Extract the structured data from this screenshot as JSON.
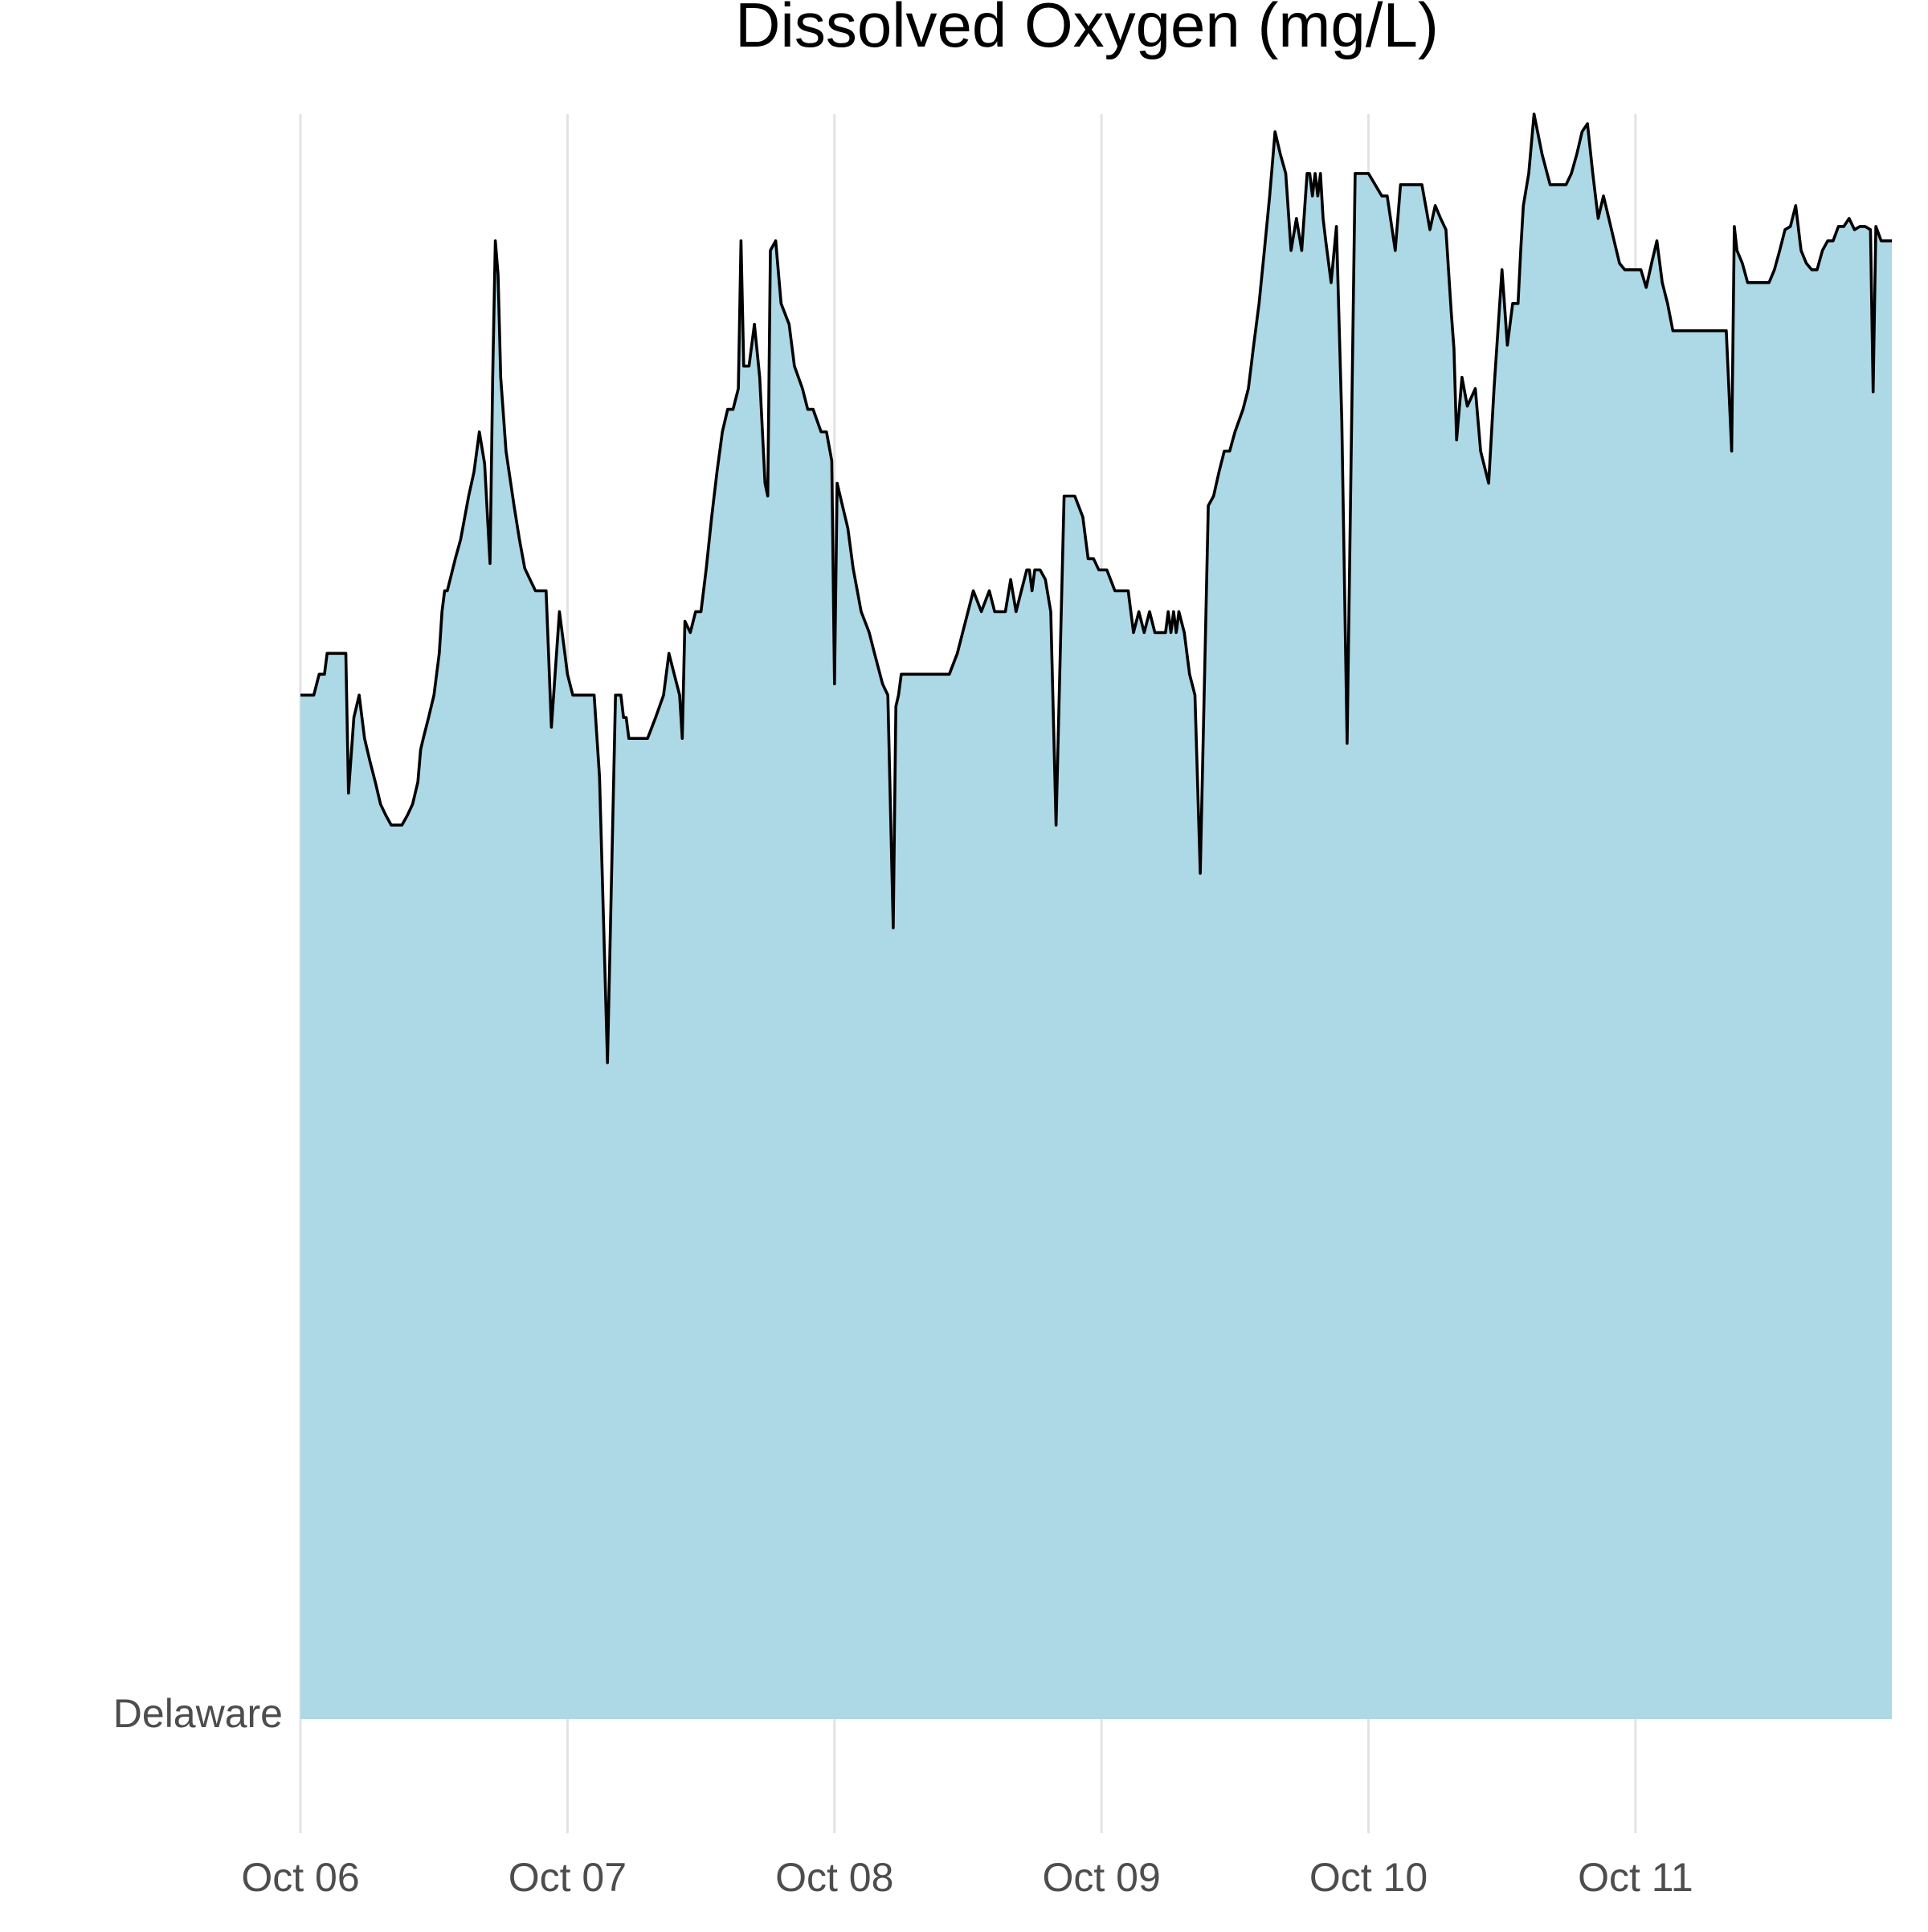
{
  "chart_data": {
    "type": "area",
    "title": "Dissolved Oxygen (mg/L)",
    "xlabel": "",
    "ylabel": "",
    "y_category_label": "Delaware",
    "x_tick_labels": [
      "Oct 06",
      "Oct 07",
      "Oct 08",
      "Oct 09",
      "Oct 10",
      "Oct 11"
    ],
    "x_tick_days": [
      0,
      1,
      2,
      3,
      4,
      5
    ],
    "x_unit": "days since Oct 06 00:00",
    "xlim": [
      0,
      5.96
    ],
    "ylim": [
      0,
      100
    ],
    "y_axis_note": "y values are relative (0 = baseline at Delaware row, 100 = top of plot); original prints no numeric y ticks",
    "grid": "vertical-major",
    "colors": {
      "fill": "#add8e6",
      "line": "#000000",
      "grid": "#e3e3e3"
    },
    "series": [
      {
        "x": [
          0.0,
          0.05,
          0.07,
          0.09,
          0.1,
          0.17,
          0.18,
          0.2,
          0.22,
          0.24,
          0.26,
          0.28,
          0.3,
          0.32,
          0.34,
          0.35,
          0.38,
          0.4,
          0.42,
          0.43,
          0.44,
          0.45,
          0.46,
          0.48,
          0.5,
          0.52,
          0.53,
          0.54,
          0.55,
          0.58,
          0.6,
          0.63,
          0.65,
          0.67,
          0.69,
          0.71,
          0.72,
          0.73,
          0.74,
          0.75,
          0.77,
          0.8,
          0.82,
          0.84,
          0.86,
          0.88,
          0.9,
          0.92,
          0.94,
          0.97,
          0.99,
          1.0,
          1.02,
          1.05,
          1.07,
          1.1,
          1.12,
          1.15,
          1.18,
          1.2,
          1.21,
          1.22,
          1.23,
          1.25,
          1.27,
          1.3,
          1.33,
          1.36,
          1.38,
          1.4,
          1.42,
          1.43,
          1.44,
          1.46,
          1.48,
          1.5,
          1.52,
          1.54,
          1.56,
          1.58,
          1.6,
          1.62,
          1.64,
          1.65,
          1.66,
          1.68,
          1.7,
          1.72,
          1.74,
          1.75,
          1.76,
          1.78,
          1.8,
          1.83,
          1.85,
          1.88,
          1.9,
          1.92,
          1.95,
          1.97,
          1.99,
          2.0,
          2.01,
          2.03,
          2.05,
          2.07,
          2.1,
          2.13,
          2.15,
          2.18,
          2.2,
          2.22,
          2.23,
          2.24,
          2.25,
          2.28,
          2.3,
          2.35,
          2.4,
          2.43,
          2.46,
          2.48,
          2.5,
          2.52,
          2.55,
          2.58,
          2.6,
          2.62,
          2.64,
          2.66,
          2.68,
          2.7,
          2.72,
          2.73,
          2.74,
          2.75,
          2.77,
          2.79,
          2.81,
          2.83,
          2.86,
          2.9,
          2.93,
          2.95,
          2.97,
          2.99,
          3.0,
          3.02,
          3.05,
          3.08,
          3.1,
          3.12,
          3.14,
          3.16,
          3.18,
          3.2,
          3.22,
          3.24,
          3.25,
          3.26,
          3.27,
          3.28,
          3.29,
          3.31,
          3.33,
          3.35,
          3.37,
          3.4,
          3.42,
          3.44,
          3.46,
          3.48,
          3.5,
          3.53,
          3.55,
          3.57,
          3.59,
          3.61,
          3.63,
          3.65,
          3.67,
          3.69,
          3.71,
          3.73,
          3.75,
          3.77,
          3.78,
          3.79,
          3.8,
          3.81,
          3.82,
          3.83,
          3.84,
          3.86,
          3.88,
          3.9,
          3.92,
          3.95,
          4.0,
          4.05,
          4.07,
          4.1,
          4.12,
          4.14,
          4.17,
          4.2,
          4.23,
          4.25,
          4.27,
          4.29,
          4.31,
          4.32,
          4.33,
          4.35,
          4.37,
          4.4,
          4.42,
          4.45,
          4.47,
          4.5,
          4.52,
          4.54,
          4.55,
          4.56,
          4.57,
          4.58,
          4.6,
          4.62,
          4.65,
          4.68,
          4.7,
          4.72,
          4.74,
          4.76,
          4.78,
          4.8,
          4.82,
          4.84,
          4.86,
          4.88,
          4.9,
          4.92,
          4.94,
          4.96,
          4.98,
          5.0,
          5.02,
          5.04,
          5.06,
          5.08,
          5.1,
          5.12,
          5.14,
          5.16,
          5.18,
          5.2,
          5.24,
          5.28,
          5.3,
          5.32,
          5.34,
          5.36,
          5.37,
          5.38,
          5.4,
          5.42,
          5.44,
          5.46,
          5.48,
          5.5,
          5.52,
          5.54,
          5.56,
          5.58,
          5.6,
          5.62,
          5.64,
          5.66,
          5.68,
          5.7,
          5.72,
          5.74,
          5.76,
          5.78,
          5.8,
          5.82,
          5.84,
          5.86,
          5.88,
          5.89,
          5.9,
          5.92,
          5.96
        ],
        "values": [
          63.8,
          63.8,
          65.1,
          65.1,
          66.4,
          66.4,
          57.7,
          62.4,
          63.8,
          61.1,
          59.7,
          58.4,
          57.0,
          56.3,
          55.7,
          55.7,
          55.7,
          56.3,
          57.0,
          57.7,
          58.4,
          60.4,
          61.1,
          62.4,
          63.8,
          66.4,
          69.0,
          70.3,
          70.3,
          72.3,
          73.5,
          76.2,
          77.7,
          80.2,
          78.2,
          72.0,
          83.6,
          92.1,
          90.0,
          83.6,
          79.0,
          75.6,
          73.5,
          71.7,
          71.0,
          70.3,
          70.3,
          70.3,
          61.8,
          69.0,
          66.4,
          65.1,
          63.8,
          63.8,
          63.8,
          63.8,
          58.7,
          40.9,
          63.8,
          63.8,
          62.4,
          62.4,
          61.1,
          61.1,
          61.1,
          61.1,
          62.4,
          63.8,
          66.4,
          65.1,
          63.8,
          61.1,
          68.4,
          67.7,
          69.0,
          69.0,
          71.7,
          74.9,
          77.7,
          80.2,
          81.6,
          81.6,
          82.9,
          92.1,
          84.3,
          84.3,
          86.9,
          83.6,
          77.0,
          76.2,
          91.5,
          92.1,
          88.2,
          86.9,
          84.3,
          82.9,
          81.6,
          81.6,
          80.2,
          80.2,
          78.4,
          64.5,
          77.0,
          75.6,
          74.2,
          71.7,
          69.0,
          67.7,
          66.4,
          64.5,
          63.8,
          49.3,
          63.1,
          63.8,
          65.1,
          65.1,
          65.1,
          65.1,
          65.1,
          65.1,
          66.4,
          67.7,
          69.0,
          70.3,
          69.0,
          70.3,
          69.0,
          69.0,
          69.0,
          71.0,
          69.0,
          70.3,
          71.6,
          71.6,
          70.3,
          71.6,
          71.6,
          71.0,
          69.0,
          55.7,
          76.2,
          76.2,
          74.9,
          72.3,
          72.3,
          71.6,
          71.6,
          71.6,
          70.3,
          70.3,
          70.3,
          67.7,
          69.0,
          67.7,
          69.0,
          67.7,
          67.7,
          67.7,
          69.0,
          67.7,
          69.0,
          67.7,
          69.0,
          67.7,
          65.1,
          63.8,
          52.7,
          75.6,
          76.2,
          77.7,
          79.0,
          79.0,
          80.2,
          81.6,
          82.9,
          85.6,
          88.2,
          91.5,
          94.9,
          98.9,
          97.5,
          96.3,
          91.5,
          93.5,
          91.5,
          96.3,
          96.3,
          94.9,
          96.3,
          94.9,
          96.3,
          93.5,
          92.1,
          89.5,
          93.0,
          80.9,
          60.8,
          96.3,
          96.3,
          94.9,
          94.9,
          91.5,
          95.6,
          95.6,
          95.6,
          95.6,
          92.8,
          94.3,
          93.5,
          92.8,
          87.6,
          85.4,
          79.7,
          83.6,
          81.8,
          82.9,
          79.0,
          77.0,
          82.9,
          90.3,
          85.6,
          88.2,
          88.2,
          88.2,
          91.5,
          94.3,
          96.3,
          100.0,
          97.5,
          95.6,
          95.6,
          95.6,
          95.6,
          96.3,
          97.5,
          98.9,
          99.4,
          96.3,
          93.5,
          94.9,
          93.5,
          92.1,
          90.7,
          90.3,
          90.3,
          90.3,
          90.3,
          89.2,
          90.7,
          92.1,
          89.5,
          88.2,
          86.5,
          86.5,
          86.5,
          86.5,
          86.5,
          86.5,
          86.5,
          86.5,
          86.5,
          79.0,
          93.0,
          91.5,
          90.7,
          89.5,
          89.5,
          89.5,
          89.5,
          89.5,
          90.3,
          91.5,
          92.8,
          93.0,
          94.3,
          91.5,
          90.7,
          90.3,
          90.3,
          91.5,
          92.1,
          92.1,
          93.0,
          93.0,
          93.5,
          92.8,
          93.0,
          93.0,
          92.8,
          82.7,
          93.0,
          92.1,
          92.1
        ]
      }
    ]
  }
}
